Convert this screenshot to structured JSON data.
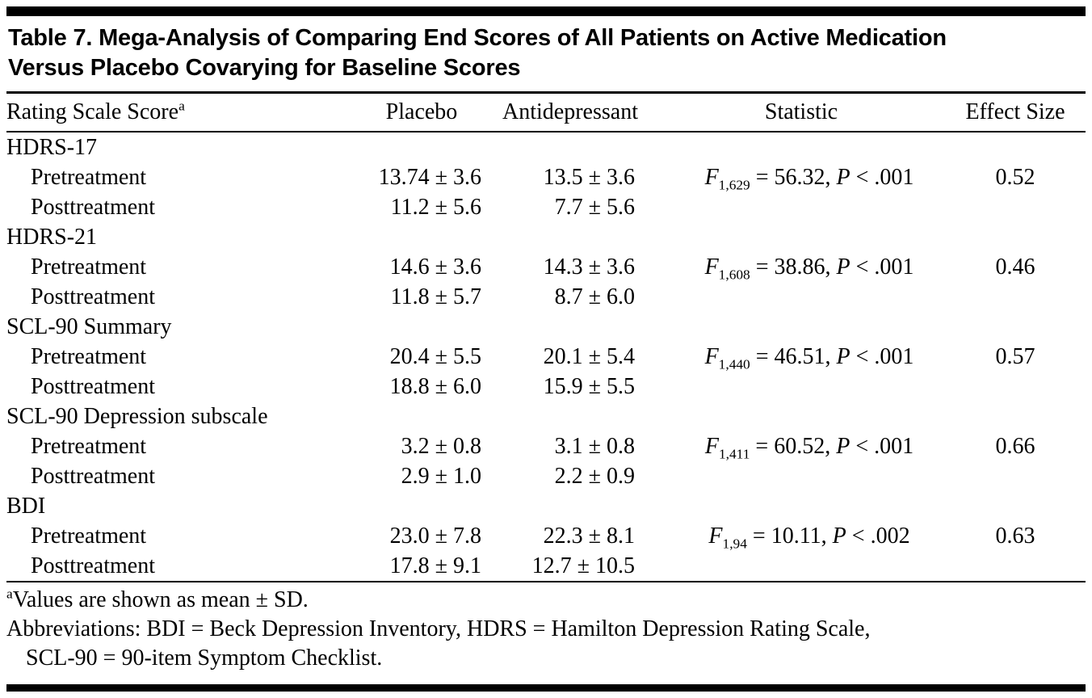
{
  "page": {
    "background": "#ffffff",
    "text_color": "#000000",
    "rule_color": "#000000"
  },
  "table": {
    "title": "Table 7. Mega-Analysis of Comparing End Scores of All Patients on Active Medication Versus Placebo Covarying for Baseline Scores",
    "columns": {
      "rating_scale": "Rating Scale Score",
      "rating_scale_sup": "a",
      "placebo": "Placebo",
      "antidepressant": "Antidepressant",
      "statistic": "Statistic",
      "effect_size": "Effect Size"
    },
    "groups": [
      {
        "name": "HDRS-17",
        "pre": {
          "label": "Pretreatment",
          "placebo": "13.74 ± 3.6",
          "antidepressant": "13.5 ± 3.6",
          "stat": {
            "f": "F",
            "df": "1,629",
            "result": " = 56.32, ",
            "p": "P",
            "pvalue": " < .001"
          },
          "effect": "0.52"
        },
        "post": {
          "label": "Posttreatment",
          "placebo": "11.2 ± 5.6",
          "antidepressant": "7.7 ± 5.6"
        }
      },
      {
        "name": "HDRS-21",
        "pre": {
          "label": "Pretreatment",
          "placebo": "14.6 ± 3.6",
          "antidepressant": "14.3 ± 3.6",
          "stat": {
            "f": "F",
            "df": "1,608",
            "result": " = 38.86, ",
            "p": "P",
            "pvalue": " < .001"
          },
          "effect": "0.46"
        },
        "post": {
          "label": "Posttreatment",
          "placebo": "11.8 ± 5.7",
          "antidepressant": "8.7 ± 6.0"
        }
      },
      {
        "name": "SCL-90 Summary",
        "pre": {
          "label": "Pretreatment",
          "placebo": "20.4 ± 5.5",
          "antidepressant": "20.1 ± 5.4",
          "stat": {
            "f": "F",
            "df": "1,440",
            "result": " = 46.51, ",
            "p": "P",
            "pvalue": " < .001"
          },
          "effect": "0.57"
        },
        "post": {
          "label": "Posttreatment",
          "placebo": "18.8 ± 6.0",
          "antidepressant": "15.9 ± 5.5"
        }
      },
      {
        "name": "SCL-90 Depression subscale",
        "pre": {
          "label": "Pretreatment",
          "placebo": "3.2 ± 0.8",
          "antidepressant": "3.1 ± 0.8",
          "stat": {
            "f": "F",
            "df": "1,411",
            "result": " = 60.52, ",
            "p": "P",
            "pvalue": " < .001"
          },
          "effect": "0.66"
        },
        "post": {
          "label": "Posttreatment",
          "placebo": "2.9 ± 1.0",
          "antidepressant": "2.2 ± 0.9"
        }
      },
      {
        "name": "BDI",
        "pre": {
          "label": "Pretreatment",
          "placebo": "23.0 ± 7.8",
          "antidepressant": "22.3 ± 8.1",
          "stat": {
            "f": "F",
            "df": "1,94",
            "result": " = 10.11, ",
            "p": "P",
            "pvalue": " < .002"
          },
          "effect": "0.63"
        },
        "post": {
          "label": "Posttreatment",
          "placebo": "17.8 ± 9.1",
          "antidepressant": "12.7 ± 10.5"
        }
      }
    ],
    "footnotes": {
      "note_sup": "a",
      "note_text": "Values are shown as mean ± SD.",
      "abbreviations_line1": "Abbreviations: BDI = Beck Depression Inventory, HDRS = Hamilton Depression Rating Scale,",
      "abbreviations_line2": "SCL-90 = 90-item Symptom Checklist."
    }
  }
}
